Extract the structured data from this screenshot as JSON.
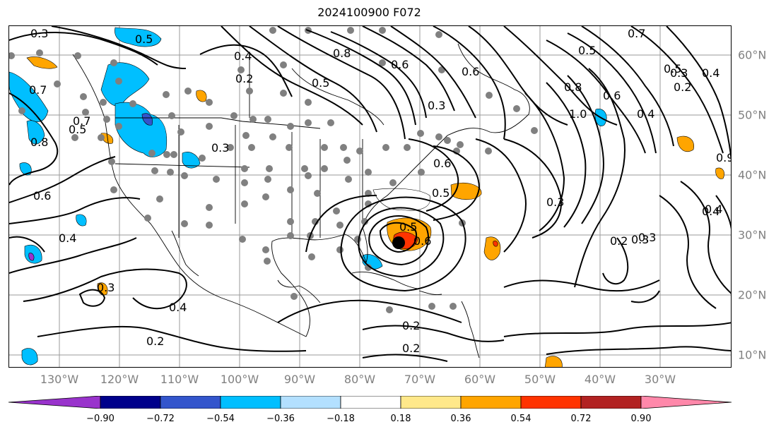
{
  "title": "2024100900 F072",
  "lon_labels": [
    "130°W",
    "120°W",
    "110°W",
    "100°W",
    "90°W",
    "80°W",
    "70°W",
    "60°W",
    "50°W",
    "40°W",
    "30°W"
  ],
  "lat_labels": [
    "60°N",
    "50°N",
    "40°N",
    "30°N",
    "20°N",
    "10°N"
  ],
  "colorbar": {
    "ticks": [
      "−0.90",
      "−0.72",
      "−0.54",
      "−0.36",
      "−0.18",
      "0.18",
      "0.36",
      "0.54",
      "0.72",
      "0.90"
    ],
    "colors": [
      "#9933cc",
      "#00008b",
      "#3355cc",
      "#00bfff",
      "#b3e0ff",
      "#ffffff",
      "#ffe88a",
      "#ffa500",
      "#ff3300",
      "#b22222",
      "#ff88aa"
    ]
  },
  "contour_labels": [
    "0.3",
    "0.5",
    "0.4",
    "0.2",
    "0.5",
    "0.8",
    "0.6",
    "0.3",
    "0.7",
    "0.5",
    "0.4",
    "0.3",
    "0.8",
    "1.0",
    "0.6",
    "0.4",
    "0.5",
    "0.6",
    "0.9",
    "0.4",
    "0.3",
    "0.7",
    "0.2",
    "0.3",
    "0.8",
    "0.5",
    "0.6",
    "0.7",
    "0.4",
    "0.5",
    "0.6",
    "0.3",
    "0.5",
    "0.6",
    "0.3",
    "0.2",
    "0.4",
    "0.3",
    "0.2",
    "0.2",
    "0.2",
    "0.4"
  ],
  "fill_colors": {
    "orange": "#ffa500",
    "red": "#ff3300",
    "cyan": "#00bfff",
    "purple": "#9933cc",
    "blue": "#3355cc"
  }
}
